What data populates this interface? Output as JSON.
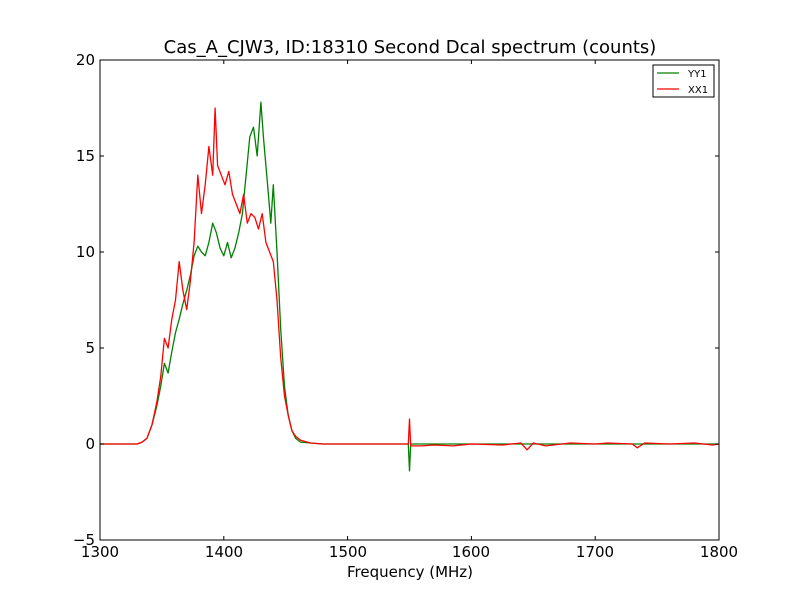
{
  "chart_data": {
    "type": "line",
    "title": "Cas_A_CJW3, ID:18310 Second Dcal spectrum (counts)",
    "xlabel": "Frequency (MHz)",
    "ylabel": "",
    "xlim": [
      1300,
      1800
    ],
    "ylim": [
      -5,
      20
    ],
    "x_ticks": [
      "1300",
      "1400",
      "1500",
      "1600",
      "1700",
      "1800"
    ],
    "y_ticks": [
      "20",
      "15",
      "10",
      "5",
      "0",
      "−5"
    ],
    "grid": false,
    "legend_position": "top-right",
    "series": [
      {
        "name": "YY1",
        "color": "#008000",
        "points": [
          [
            1300,
            0
          ],
          [
            1330,
            0
          ],
          [
            1334,
            0.1
          ],
          [
            1338,
            0.3
          ],
          [
            1342,
            1.0
          ],
          [
            1346,
            2.0
          ],
          [
            1349,
            3.0
          ],
          [
            1352,
            4.2
          ],
          [
            1355,
            3.7
          ],
          [
            1358,
            4.8
          ],
          [
            1361,
            5.8
          ],
          [
            1364,
            6.5
          ],
          [
            1367,
            7.3
          ],
          [
            1370,
            8.0
          ],
          [
            1373,
            8.8
          ],
          [
            1376,
            9.8
          ],
          [
            1379,
            10.3
          ],
          [
            1382,
            10.0
          ],
          [
            1385,
            9.8
          ],
          [
            1388,
            10.5
          ],
          [
            1391,
            11.5
          ],
          [
            1394,
            11.0
          ],
          [
            1397,
            10.2
          ],
          [
            1400,
            9.8
          ],
          [
            1403,
            10.5
          ],
          [
            1406,
            9.7
          ],
          [
            1409,
            10.2
          ],
          [
            1412,
            11.0
          ],
          [
            1415,
            12.0
          ],
          [
            1418,
            14.0
          ],
          [
            1421,
            16.0
          ],
          [
            1424,
            16.5
          ],
          [
            1427,
            15.0
          ],
          [
            1430,
            17.8
          ],
          [
            1432,
            16.0
          ],
          [
            1434,
            14.5
          ],
          [
            1436,
            13.0
          ],
          [
            1438,
            11.5
          ],
          [
            1440,
            13.5
          ],
          [
            1443,
            10.0
          ],
          [
            1446,
            6.0
          ],
          [
            1449,
            3.0
          ],
          [
            1452,
            1.5
          ],
          [
            1455,
            0.7
          ],
          [
            1458,
            0.3
          ],
          [
            1462,
            0.1
          ],
          [
            1470,
            0.05
          ],
          [
            1480,
            0
          ],
          [
            1549,
            0
          ],
          [
            1550,
            -1.4
          ],
          [
            1551,
            0
          ],
          [
            1800,
            0
          ]
        ]
      },
      {
        "name": "XX1",
        "color": "#ff0000",
        "points": [
          [
            1300,
            0
          ],
          [
            1330,
            0
          ],
          [
            1334,
            0.1
          ],
          [
            1338,
            0.3
          ],
          [
            1342,
            1.0
          ],
          [
            1346,
            2.2
          ],
          [
            1349,
            3.5
          ],
          [
            1352,
            5.5
          ],
          [
            1355,
            5.0
          ],
          [
            1358,
            6.5
          ],
          [
            1361,
            7.5
          ],
          [
            1364,
            9.5
          ],
          [
            1367,
            8.0
          ],
          [
            1370,
            7.0
          ],
          [
            1373,
            8.5
          ],
          [
            1376,
            10.5
          ],
          [
            1379,
            14.0
          ],
          [
            1382,
            12.0
          ],
          [
            1385,
            13.5
          ],
          [
            1388,
            15.5
          ],
          [
            1391,
            14.0
          ],
          [
            1393,
            17.5
          ],
          [
            1395,
            14.5
          ],
          [
            1398,
            14.0
          ],
          [
            1401,
            13.5
          ],
          [
            1404,
            14.2
          ],
          [
            1407,
            13.0
          ],
          [
            1410,
            12.5
          ],
          [
            1413,
            12.0
          ],
          [
            1416,
            13.0
          ],
          [
            1419,
            11.5
          ],
          [
            1422,
            12.0
          ],
          [
            1425,
            11.8
          ],
          [
            1428,
            11.2
          ],
          [
            1431,
            12.0
          ],
          [
            1434,
            10.5
          ],
          [
            1437,
            10.0
          ],
          [
            1440,
            9.5
          ],
          [
            1443,
            7.5
          ],
          [
            1446,
            4.5
          ],
          [
            1449,
            2.5
          ],
          [
            1452,
            1.5
          ],
          [
            1455,
            0.7
          ],
          [
            1458,
            0.4
          ],
          [
            1462,
            0.2
          ],
          [
            1470,
            0.05
          ],
          [
            1480,
            0
          ],
          [
            1549,
            0
          ],
          [
            1550,
            1.3
          ],
          [
            1551,
            -0.1
          ],
          [
            1560,
            -0.1
          ],
          [
            1570,
            -0.05
          ],
          [
            1585,
            -0.1
          ],
          [
            1600,
            0
          ],
          [
            1625,
            -0.05
          ],
          [
            1640,
            0.05
          ],
          [
            1645,
            -0.3
          ],
          [
            1650,
            0.05
          ],
          [
            1660,
            -0.1
          ],
          [
            1680,
            0.05
          ],
          [
            1700,
            0
          ],
          [
            1710,
            0.05
          ],
          [
            1730,
            0
          ],
          [
            1734,
            -0.2
          ],
          [
            1740,
            0.05
          ],
          [
            1760,
            0
          ],
          [
            1780,
            0.05
          ],
          [
            1795,
            -0.05
          ],
          [
            1800,
            0
          ]
        ]
      }
    ]
  }
}
